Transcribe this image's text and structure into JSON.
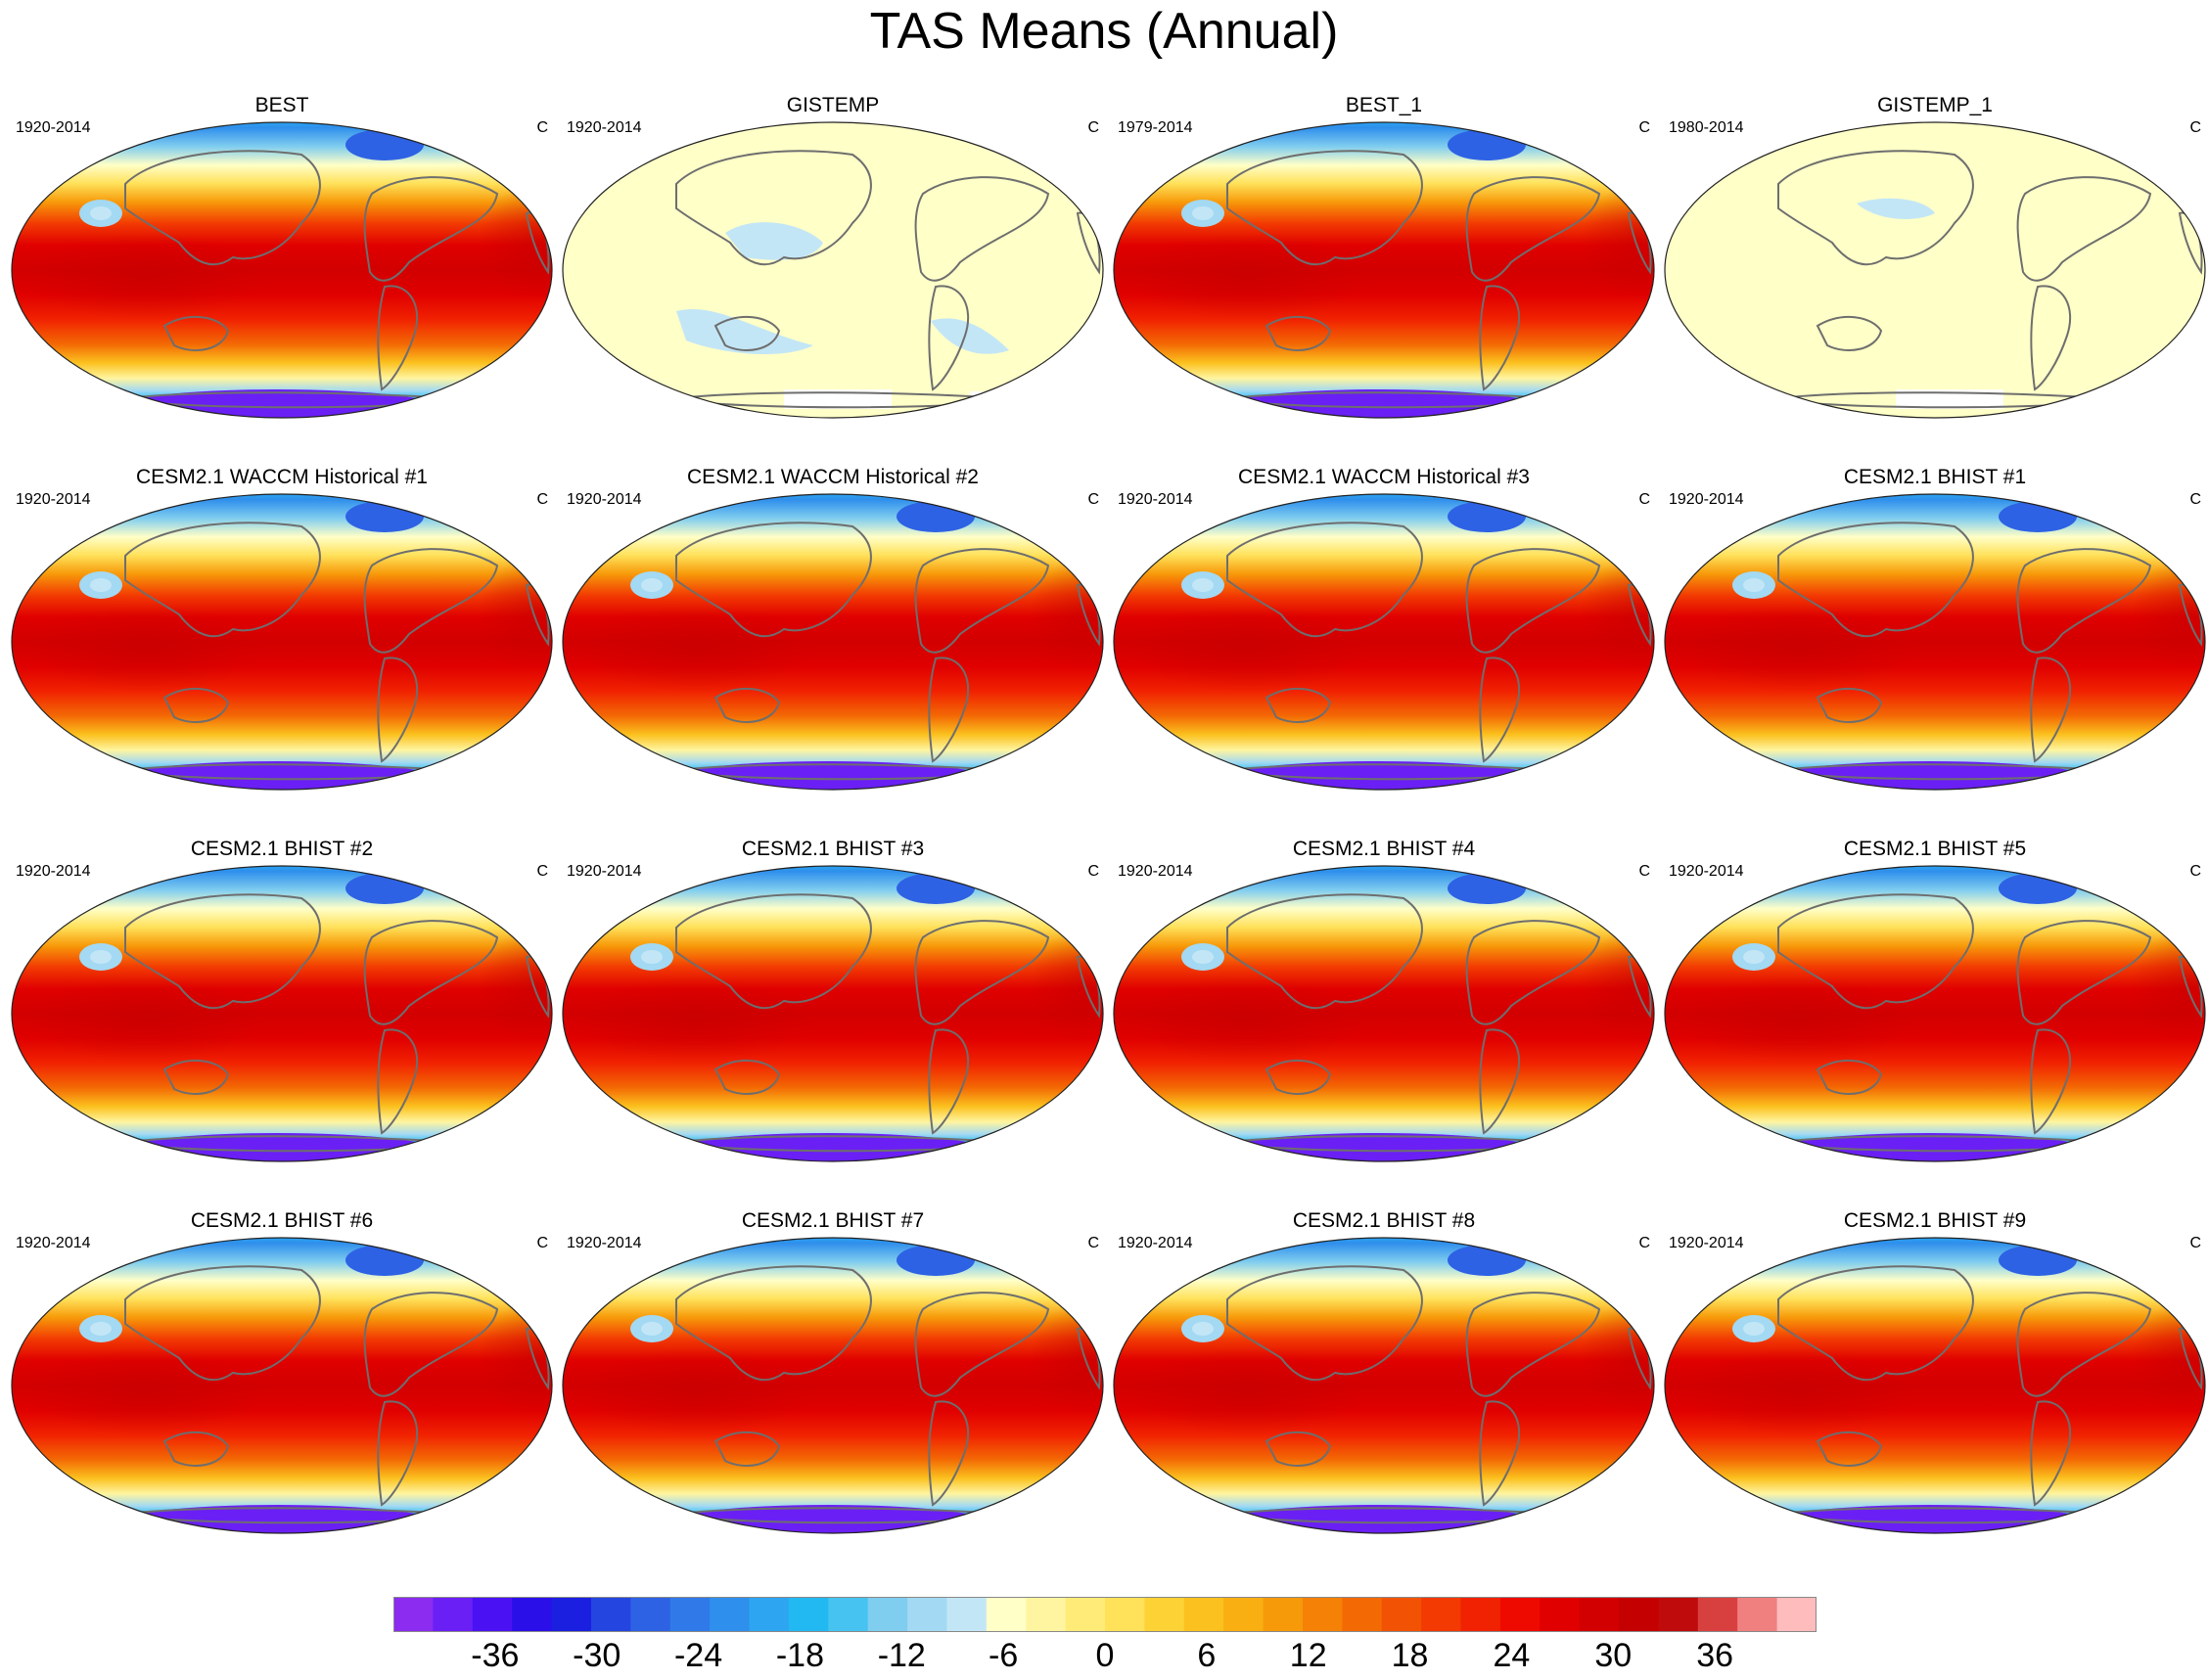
{
  "title": "TAS Means (Annual)",
  "colors": {
    "land_outline": "#6e6e6e",
    "map_border": "#222222",
    "palette": [
      "#8b2cf0",
      "#6a1ff5",
      "#4a12f2",
      "#2a0fe8",
      "#1a1fe0",
      "#2445e0",
      "#2e62e4",
      "#2f7ae8",
      "#2f8fec",
      "#2ea5f0",
      "#22b9f2",
      "#46c3f0",
      "#7fcdef",
      "#a3d9f2",
      "#c3e6f6",
      "#ffffc8",
      "#fff5a0",
      "#ffec78",
      "#ffe15a",
      "#fdd235",
      "#fbc11e",
      "#f9ae12",
      "#f79a0a",
      "#f58206",
      "#f36a04",
      "#f25203",
      "#f23a02",
      "#f12201",
      "#ef0a00",
      "#e00000",
      "#d20000",
      "#c40000",
      "#bf0b0b",
      "#d84040",
      "#f08080",
      "#ffbcbc"
    ]
  },
  "panels": [
    {
      "title": "BEST",
      "left": "1920-2014",
      "right": "C",
      "style": "full"
    },
    {
      "title": "GISTEMP",
      "left": "1920-2014",
      "right": "C",
      "style": "anomaly"
    },
    {
      "title": "BEST_1",
      "left": "1979-2014",
      "right": "C",
      "style": "full"
    },
    {
      "title": "GISTEMP_1",
      "left": "1980-2014",
      "right": "C",
      "style": "anomaly2"
    },
    {
      "title": "CESM2.1 WACCM Historical #1",
      "left": "1920-2014",
      "right": "C",
      "style": "full"
    },
    {
      "title": "CESM2.1 WACCM Historical #2",
      "left": "1920-2014",
      "right": "C",
      "style": "full"
    },
    {
      "title": "CESM2.1 WACCM Historical #3",
      "left": "1920-2014",
      "right": "C",
      "style": "full"
    },
    {
      "title": "CESM2.1 BHIST #1",
      "left": "1920-2014",
      "right": "C",
      "style": "full"
    },
    {
      "title": "CESM2.1 BHIST #2",
      "left": "1920-2014",
      "right": "C",
      "style": "full"
    },
    {
      "title": "CESM2.1 BHIST #3",
      "left": "1920-2014",
      "right": "C",
      "style": "full"
    },
    {
      "title": "CESM2.1 BHIST #4",
      "left": "1920-2014",
      "right": "C",
      "style": "full"
    },
    {
      "title": "CESM2.1 BHIST #5",
      "left": "1920-2014",
      "right": "C",
      "style": "full"
    },
    {
      "title": "CESM2.1 BHIST #6",
      "left": "1920-2014",
      "right": "C",
      "style": "full"
    },
    {
      "title": "CESM2.1 BHIST #7",
      "left": "1920-2014",
      "right": "C",
      "style": "full"
    },
    {
      "title": "CESM2.1 BHIST #8",
      "left": "1920-2014",
      "right": "C",
      "style": "full"
    },
    {
      "title": "CESM2.1 BHIST #9",
      "left": "1920-2014",
      "right": "C",
      "style": "full"
    }
  ],
  "colorbar": {
    "labels": [
      "-36",
      "-30",
      "-24",
      "-18",
      "-12",
      "-6",
      "0",
      "6",
      "12",
      "18",
      "24",
      "30",
      "36"
    ],
    "label_values": [
      -36,
      -30,
      -24,
      -18,
      -12,
      -6,
      0,
      6,
      12,
      18,
      24,
      30,
      36
    ],
    "min": -42,
    "max": 42,
    "step": 3
  }
}
